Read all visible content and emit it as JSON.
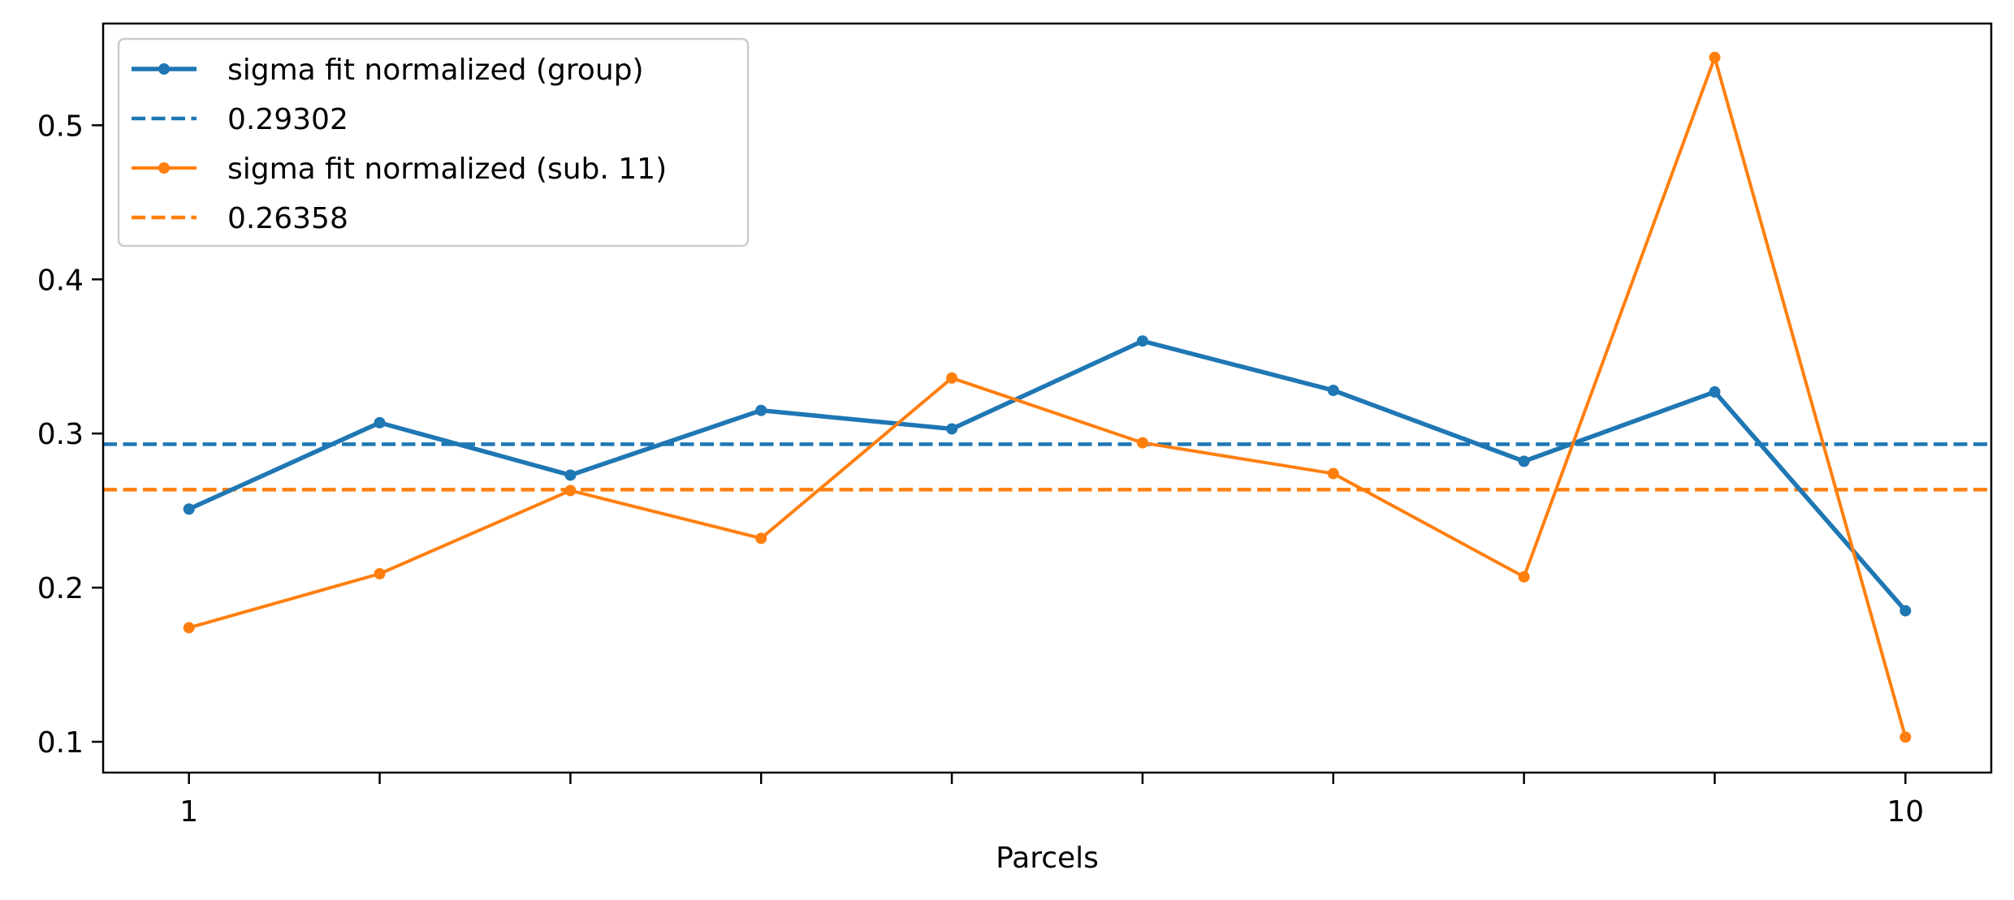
{
  "chart_data": {
    "type": "line",
    "title": "",
    "xlabel": "Parcels",
    "ylabel": "",
    "x": [
      1,
      2,
      3,
      4,
      5,
      6,
      7,
      8,
      9,
      10
    ],
    "xlim": [
      0.55,
      10.45
    ],
    "ylim": [
      0.08,
      0.566
    ],
    "x_tick_values": [
      1,
      2,
      3,
      4,
      5,
      6,
      7,
      8,
      9,
      10
    ],
    "x_tick_labels": [
      "1",
      "",
      "",
      "",
      "",
      "",
      "",
      "",
      "",
      "10"
    ],
    "y_ticks": [
      0.1,
      0.2,
      0.3,
      0.4,
      0.5
    ],
    "y_tick_labels": [
      "0.1",
      "0.2",
      "0.3",
      "0.4",
      "0.5"
    ],
    "grid": false,
    "legend_position": "top-left",
    "series": [
      {
        "name": "sigma fit normalized (group)",
        "color": "#1f77b4",
        "style": "solid-markers",
        "values": [
          0.251,
          0.307,
          0.273,
          0.315,
          0.303,
          0.36,
          0.328,
          0.282,
          0.327,
          0.185
        ]
      },
      {
        "name": "sigma fit normalized (sub. 11)",
        "color": "#ff7f0e",
        "style": "solid-markers",
        "values": [
          0.174,
          0.209,
          0.263,
          0.232,
          0.336,
          0.294,
          0.274,
          0.207,
          0.544,
          0.103
        ]
      }
    ],
    "hlines": [
      {
        "name": "0.29302",
        "value": 0.29302,
        "color": "#1f77b4",
        "style": "dashed"
      },
      {
        "name": "0.26358",
        "value": 0.26358,
        "color": "#ff7f0e",
        "style": "dashed"
      }
    ],
    "legend": [
      {
        "label": "sigma fit normalized (group)",
        "kind": "line",
        "ref": "series.0"
      },
      {
        "label": "0.29302",
        "kind": "hline",
        "ref": "hlines.0"
      },
      {
        "label": "sigma fit normalized (sub. 11)",
        "kind": "line",
        "ref": "series.1"
      },
      {
        "label": "0.26358",
        "kind": "hline",
        "ref": "hlines.1"
      }
    ]
  }
}
